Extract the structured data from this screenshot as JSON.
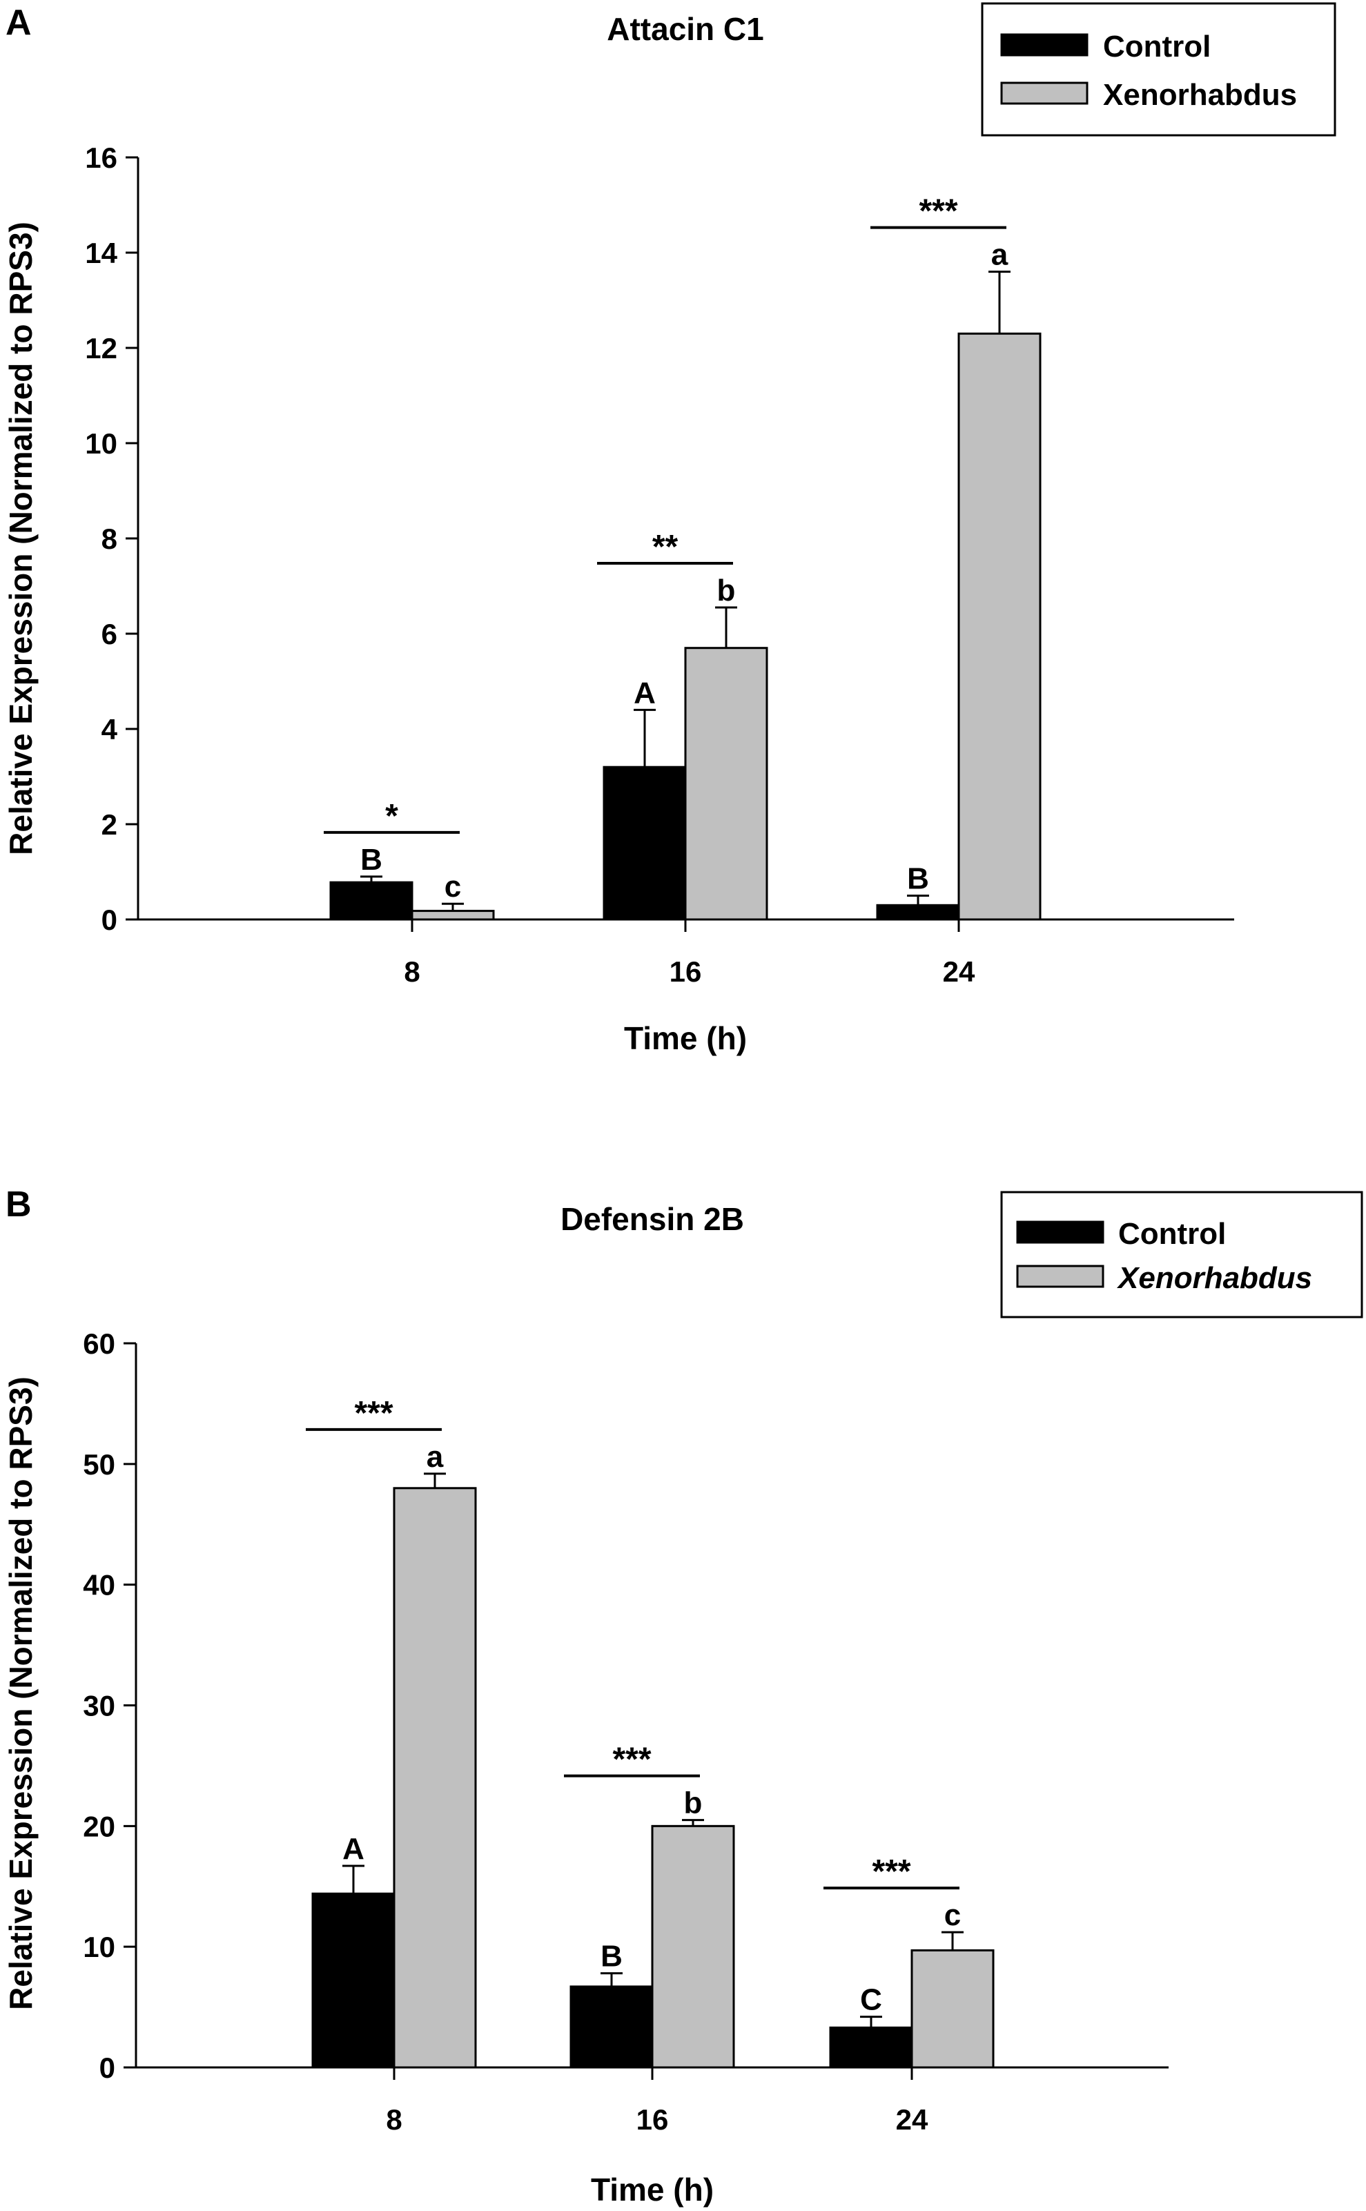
{
  "chart_data": [
    {
      "type": "bar",
      "panel_label": "A",
      "title": "Attacin C1",
      "xlabel": "Time (h)",
      "ylabel": "Relative Expression (Normalized to RPS3)",
      "categories": [
        "8",
        "16",
        "24"
      ],
      "ylim": [
        0,
        16
      ],
      "yticks": [
        0,
        2,
        4,
        6,
        8,
        10,
        12,
        14,
        16
      ],
      "legend_position": "top-right",
      "series": [
        {
          "name": "Control",
          "color": "#000000",
          "italic": false,
          "values": [
            0.78,
            3.2,
            0.3
          ],
          "errors": [
            0.12,
            1.2,
            0.2
          ],
          "letters": [
            "B",
            "A",
            "B"
          ]
        },
        {
          "name": "Xenorhabdus",
          "color": "#c0c0c0",
          "italic": false,
          "values": [
            0.18,
            5.7,
            12.3
          ],
          "errors": [
            0.15,
            0.85,
            1.3
          ],
          "letters": [
            "c",
            "b",
            "a"
          ]
        }
      ],
      "significance": [
        "*",
        "**",
        "***"
      ]
    },
    {
      "type": "bar",
      "panel_label": "B",
      "title": "Defensin 2B",
      "xlabel": "Time (h)",
      "ylabel": "Relative Expression (Normalized to RPS3)",
      "categories": [
        "8",
        "16",
        "24"
      ],
      "ylim": [
        0,
        60
      ],
      "yticks": [
        0,
        10,
        20,
        30,
        40,
        50,
        60
      ],
      "legend_position": "top-right",
      "series": [
        {
          "name": "Control",
          "color": "#000000",
          "italic": false,
          "values": [
            14.4,
            6.7,
            3.3
          ],
          "errors": [
            2.3,
            1.1,
            0.9
          ],
          "letters": [
            "A",
            "B",
            "C"
          ]
        },
        {
          "name": "Xenorhabdus",
          "color": "#c0c0c0",
          "italic": true,
          "values": [
            48.0,
            20.0,
            9.7
          ],
          "errors": [
            1.2,
            0.5,
            1.5
          ],
          "letters": [
            "a",
            "b",
            "c"
          ]
        }
      ],
      "significance": [
        "***",
        "***",
        "***"
      ]
    }
  ]
}
